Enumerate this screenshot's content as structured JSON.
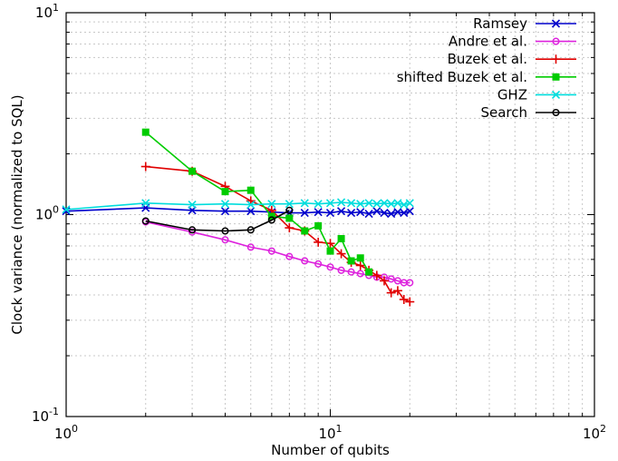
{
  "chart_data": {
    "type": "line",
    "xlabel": "Number of qubits",
    "ylabel": "Clock variance (normalized to SQL)",
    "xscale": "log",
    "yscale": "log",
    "xlim": [
      1,
      100
    ],
    "ylim": [
      0.1,
      10
    ],
    "grid": true,
    "legend_position": "top-right",
    "x_ticks": [
      {
        "base": "10",
        "exp": "0",
        "value": 1
      },
      {
        "base": "10",
        "exp": "1",
        "value": 10
      },
      {
        "base": "10",
        "exp": "2",
        "value": 100
      }
    ],
    "y_ticks": [
      {
        "base": "10",
        "exp": "-1",
        "value": 0.1
      },
      {
        "base": "10",
        "exp": "0",
        "value": 1
      },
      {
        "base": "10",
        "exp": "1",
        "value": 10
      }
    ],
    "series": [
      {
        "name": "Ramsey",
        "color": "#0000cc",
        "marker": "x",
        "x": [
          1,
          2,
          3,
          4,
          5,
          6,
          7,
          8,
          9,
          10,
          11,
          12,
          13,
          14,
          15,
          16,
          17,
          18,
          19,
          20
        ],
        "y": [
          1.04,
          1.08,
          1.05,
          1.04,
          1.04,
          1.03,
          1.02,
          1.02,
          1.03,
          1.02,
          1.04,
          1.02,
          1.03,
          1.01,
          1.04,
          1.02,
          1.01,
          1.03,
          1.02,
          1.04
        ]
      },
      {
        "name": "Andre et al.",
        "color": "#dd22dd",
        "marker": "o",
        "x": [
          2,
          3,
          4,
          5,
          6,
          7,
          8,
          9,
          10,
          11,
          12,
          13,
          14,
          15,
          16,
          17,
          18,
          19,
          20
        ],
        "y": [
          0.92,
          0.82,
          0.75,
          0.69,
          0.66,
          0.62,
          0.59,
          0.57,
          0.55,
          0.53,
          0.52,
          0.51,
          0.5,
          0.49,
          0.49,
          0.48,
          0.47,
          0.46,
          0.46
        ]
      },
      {
        "name": "Buzek et al.",
        "color": "#e00000",
        "marker": "+",
        "x": [
          2,
          3,
          4,
          5,
          6,
          7,
          8,
          9,
          10,
          11,
          12,
          13,
          14,
          15,
          16,
          17,
          18,
          19,
          20
        ],
        "y": [
          1.73,
          1.64,
          1.38,
          1.17,
          1.05,
          0.86,
          0.83,
          0.73,
          0.72,
          0.64,
          0.58,
          0.56,
          0.53,
          0.5,
          0.47,
          0.41,
          0.42,
          0.38,
          0.37
        ]
      },
      {
        "name": "shifted Buzek et al.",
        "color": "#00cc00",
        "marker": "s",
        "x": [
          2,
          3,
          4,
          5,
          6,
          7,
          8,
          9,
          10,
          11,
          12,
          13,
          14
        ],
        "y": [
          2.56,
          1.64,
          1.3,
          1.32,
          0.98,
          0.96,
          0.83,
          0.88,
          0.66,
          0.76,
          0.59,
          0.61,
          0.52
        ]
      },
      {
        "name": "GHZ",
        "color": "#00dddd",
        "marker": "x",
        "x": [
          1,
          2,
          3,
          4,
          5,
          6,
          7,
          8,
          9,
          10,
          11,
          12,
          13,
          14,
          15,
          16,
          17,
          18,
          19,
          20
        ],
        "y": [
          1.06,
          1.14,
          1.12,
          1.13,
          1.12,
          1.13,
          1.13,
          1.14,
          1.13,
          1.14,
          1.15,
          1.14,
          1.13,
          1.14,
          1.13,
          1.14,
          1.13,
          1.14,
          1.12,
          1.14
        ]
      },
      {
        "name": "Search",
        "color": "#000000",
        "marker": "o",
        "x": [
          2,
          3,
          4,
          5,
          6,
          7
        ],
        "y": [
          0.93,
          0.84,
          0.83,
          0.84,
          0.94,
          1.05
        ]
      }
    ]
  }
}
